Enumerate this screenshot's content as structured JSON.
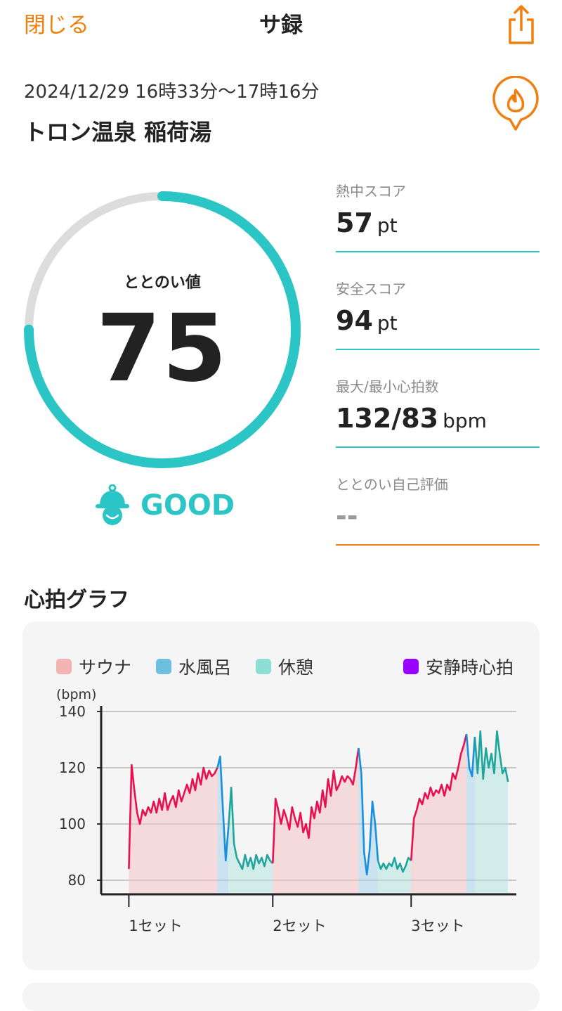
{
  "header": {
    "close_label": "閉じる",
    "title": "サ録",
    "share_icon": "share-icon"
  },
  "session": {
    "time_range": "2024/12/29 16時33分〜17時16分",
    "facility": "トロン温泉 稲荷湯",
    "pin_icon": "fire-pin-icon"
  },
  "ring": {
    "label": "ととのい値",
    "value": "75",
    "progress_fraction": 0.75,
    "grade": "GOOD",
    "grade_icon": "bell-mascot-icon",
    "accent_color": "#2cc5c5",
    "track_color": "#dcdcdc"
  },
  "stats": [
    {
      "label": "熱中スコア",
      "value": "57",
      "unit": "pt"
    },
    {
      "label": "安全スコア",
      "value": "94",
      "unit": "pt"
    },
    {
      "label": "最大/最小心拍数",
      "value": "132/83",
      "unit": "bpm"
    },
    {
      "label": "ととのい自己評価",
      "value": "--",
      "unit": ""
    }
  ],
  "graph": {
    "title": "心拍グラフ",
    "unit_label": "(bpm)",
    "legend": [
      {
        "label": "サウナ",
        "color": "#f4b3b3"
      },
      {
        "label": "水風呂",
        "color": "#6cc0de"
      },
      {
        "label": "休憩",
        "color": "#8ddfd6"
      },
      {
        "label": "安静時心拍",
        "color": "#9a00ff"
      }
    ]
  },
  "chart_data": {
    "type": "line",
    "ylabel": "(bpm)",
    "ylim": [
      75,
      142
    ],
    "yticks": [
      "140",
      "120",
      "100",
      "80"
    ],
    "ytick_values": [
      140,
      120,
      100,
      80
    ],
    "x_categories": [
      "1セット",
      "2セット",
      "3セット"
    ],
    "x_category_positions": [
      0,
      52,
      102
    ],
    "xlim": [
      -10,
      140
    ],
    "phases": [
      {
        "phase": "サウナ",
        "start": 0,
        "end": 32,
        "color": "#e8104e",
        "fill": "#f4c2c6"
      },
      {
        "phase": "水風呂",
        "start": 32,
        "end": 36,
        "color": "#1a8fe0",
        "fill": "#a8d4ec"
      },
      {
        "phase": "休憩",
        "start": 36,
        "end": 52,
        "color": "#1fa59b",
        "fill": "#b5e6df"
      },
      {
        "phase": "サウナ",
        "start": 52,
        "end": 83,
        "color": "#e8104e",
        "fill": "#f4c2c6"
      },
      {
        "phase": "水風呂",
        "start": 83,
        "end": 90,
        "color": "#1a8fe0",
        "fill": "#a8d4ec"
      },
      {
        "phase": "休憩",
        "start": 90,
        "end": 102,
        "color": "#1fa59b",
        "fill": "#b5e6df"
      },
      {
        "phase": "サウナ",
        "start": 102,
        "end": 122,
        "color": "#e8104e",
        "fill": "#f4c2c6"
      },
      {
        "phase": "水風呂",
        "start": 122,
        "end": 125,
        "color": "#1a8fe0",
        "fill": "#a8d4ec"
      },
      {
        "phase": "休憩",
        "start": 125,
        "end": 137,
        "color": "#1fa59b",
        "fill": "#b5e6df"
      }
    ],
    "series": [
      {
        "x": [
          0,
          1,
          2,
          3,
          4,
          5,
          6,
          7,
          8,
          9,
          10,
          11,
          12,
          13,
          14,
          15,
          16,
          17,
          18,
          19,
          20,
          21,
          22,
          23,
          24,
          25,
          26,
          27,
          28,
          29,
          30,
          31,
          32,
          33,
          34,
          35,
          36,
          37,
          38,
          39,
          40,
          41,
          42,
          43,
          44,
          45,
          46,
          47,
          48,
          49,
          50,
          51,
          52,
          53,
          54,
          55,
          56,
          57,
          58,
          59,
          60,
          61,
          62,
          63,
          64,
          65,
          66,
          67,
          68,
          69,
          70,
          71,
          72,
          73,
          74,
          75,
          76,
          77,
          78,
          79,
          80,
          81,
          82,
          83,
          84,
          85,
          86,
          87,
          88,
          89,
          90,
          91,
          92,
          93,
          94,
          95,
          96,
          97,
          98,
          99,
          100,
          101,
          102,
          103,
          104,
          105,
          106,
          107,
          108,
          109,
          110,
          111,
          112,
          113,
          114,
          115,
          116,
          117,
          118,
          119,
          120,
          121,
          122,
          123,
          124,
          125,
          126,
          127,
          128,
          129,
          130,
          131,
          132,
          133,
          134,
          135,
          136,
          137
        ],
        "y": [
          84,
          121,
          112,
          104,
          100,
          105,
          103,
          106,
          104,
          108,
          104,
          109,
          105,
          111,
          105,
          108,
          110,
          106,
          112,
          108,
          111,
          114,
          111,
          116,
          112,
          118,
          114,
          120,
          116,
          119,
          117,
          118,
          120,
          124,
          105,
          87,
          99,
          113,
          93,
          88,
          86,
          84,
          89,
          85,
          88,
          84,
          89,
          86,
          88,
          85,
          89,
          87,
          86,
          109,
          105,
          100,
          105,
          102,
          98,
          106,
          102,
          99,
          104,
          97,
          100,
          95,
          106,
          102,
          108,
          104,
          112,
          106,
          116,
          110,
          119,
          112,
          114,
          117,
          115,
          117,
          116,
          114,
          120,
          127,
          118,
          90,
          82,
          91,
          108,
          100,
          87,
          84,
          86,
          84,
          86,
          85,
          88,
          84,
          86,
          83,
          85,
          88,
          87,
          102,
          105,
          109,
          107,
          111,
          109,
          113,
          110,
          112,
          111,
          114,
          110,
          114,
          112,
          118,
          116,
          120,
          125,
          128,
          132,
          120,
          117,
          131,
          118,
          133,
          116,
          127,
          120,
          125,
          118,
          133,
          125,
          118,
          120,
          115
        ]
      }
    ]
  }
}
